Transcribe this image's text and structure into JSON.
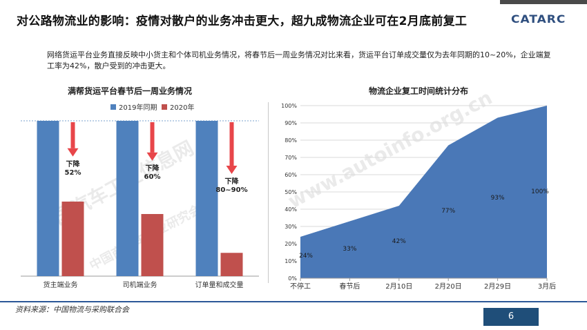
{
  "title": "对公路物流业的影响：疫情对散户的业务冲击更大，超九成物流企业可在2月底前复工",
  "logo": "CATARC",
  "summary": "网络货运平台业务直接反映中小货主和个体司机业务情况，将春节后一周业务情况对比来看，货运平台订单成交量仅为去年同期的10~20%，企业端复工率为42%，散户受到的冲击更大。",
  "source": "资料来源：中国物流与采购联合会",
  "page_number": "6",
  "watermarks": [
    "中国汽车工业信息网",
    "www.autoinfo.org.cn",
    "中国商用车产业研究会"
  ],
  "colors": {
    "blue": "#4f81bd",
    "red": "#c0504d",
    "arrow": "#e8464a",
    "area": "#4a78b7"
  },
  "chart_data": [
    {
      "type": "bar",
      "title": "满帮货运平台春节后一周业务情况",
      "categories": [
        "货主端业务",
        "司机端业务",
        "订单量和成交量"
      ],
      "series": [
        {
          "name": "2019年同期",
          "values": [
            100,
            100,
            100
          ]
        },
        {
          "name": "2020年",
          "values": [
            48,
            40,
            15
          ]
        }
      ],
      "annotations": [
        {
          "category": "货主端业务",
          "text_line1": "下降",
          "text_line2": "52%"
        },
        {
          "category": "司机端业务",
          "text_line1": "下降",
          "text_line2": "60%"
        },
        {
          "category": "订单量和成交量",
          "text_line1": "下降",
          "text_line2": "80~90%"
        }
      ],
      "ylim": [
        0,
        100
      ],
      "legend": "top"
    },
    {
      "type": "area",
      "title": "物流企业复工时间统计分布",
      "x": [
        "不停工",
        "春节后",
        "2月10日",
        "2月20日",
        "2月29日",
        "3月后"
      ],
      "values": [
        24,
        33,
        42,
        77,
        93,
        100
      ],
      "value_labels": [
        "24%",
        "33%",
        "42%",
        "77%",
        "93%",
        "100%"
      ],
      "yticks": [
        "0%",
        "10%",
        "20%",
        "30%",
        "40%",
        "50%",
        "60%",
        "70%",
        "80%",
        "90%",
        "100%"
      ],
      "ylim": [
        0,
        100
      ],
      "grid": true
    }
  ]
}
